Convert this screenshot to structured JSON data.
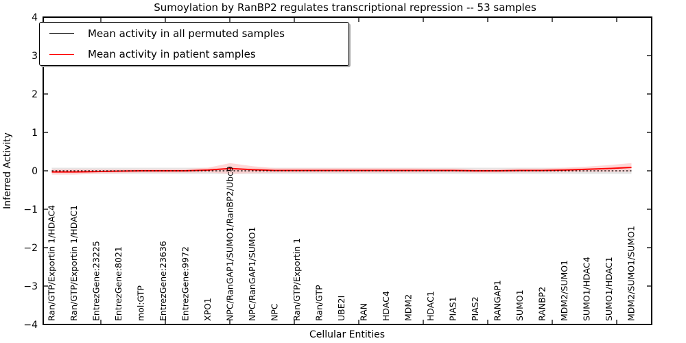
{
  "chart_data": {
    "type": "line",
    "title": "Sumoylation by RanBP2 regulates transcriptional repression -- 53 samples",
    "xlabel": "Cellular Entities",
    "ylabel": "Inferred Activity",
    "ylim": [
      -4,
      4
    ],
    "yticks": [
      4,
      3,
      2,
      1,
      0,
      -1,
      -2,
      -3,
      -4
    ],
    "grid": false,
    "legend_position": "upper left",
    "categories": [
      "Ran/GTP/Exportin 1/HDAC4",
      "Ran/GTP/Exportin 1/HDAC1",
      "EntrezGene:23225",
      "EntrezGene:8021",
      "mol:GTP",
      "EntrezGene:23636",
      "EntrezGene:9972",
      "XPO1",
      "NPC/RanGAP1/SUMO1/RanBP2/Ubc9",
      "NPC/RanGAP1/SUMO1",
      "NPC",
      "Ran/GTP/Exportin 1",
      "Ran/GTP",
      "UBE2I",
      "RAN",
      "HDAC4",
      "MDM2",
      "HDAC1",
      "PIAS1",
      "PIAS2",
      "RANGAP1",
      "SUMO1",
      "RANBP2",
      "MDM2/SUMO1",
      "SUMO1/HDAC4",
      "SUMO1/HDAC1",
      "MDM2/SUMO1/SUMO1"
    ],
    "series": [
      {
        "name": "Mean activity in all permuted samples",
        "color": "#000000",
        "line_style": "dashed",
        "values": [
          0,
          0,
          0,
          0,
          0,
          0,
          0,
          0,
          0,
          0,
          0,
          0,
          0,
          0,
          0,
          0,
          0,
          0,
          0,
          0,
          0,
          0,
          0,
          0,
          0,
          0,
          0
        ],
        "band_halfwidth": [
          0.08,
          0.08,
          0.08,
          0.08,
          0.08,
          0.08,
          0.08,
          0.08,
          0.08,
          0.08,
          0.08,
          0.08,
          0.08,
          0.08,
          0.08,
          0.08,
          0.08,
          0.08,
          0.08,
          0.08,
          0.08,
          0.08,
          0.08,
          0.08,
          0.08,
          0.08,
          0.08
        ],
        "band_color": "#dcdcdc"
      },
      {
        "name": "Mean activity in patient samples",
        "color": "#ff0000",
        "line_style": "solid",
        "values": [
          -0.03,
          -0.03,
          -0.02,
          -0.01,
          0,
          0,
          0,
          0.02,
          0.06,
          0.03,
          0.01,
          0.01,
          0.01,
          0.01,
          0.01,
          0.01,
          0.01,
          0.01,
          0.01,
          0,
          0,
          0.01,
          0.01,
          0.02,
          0.04,
          0.06,
          0.09
        ],
        "band_halfwidth": [
          0.07,
          0.07,
          0.06,
          0.05,
          0.05,
          0.05,
          0.05,
          0.06,
          0.14,
          0.09,
          0.06,
          0.06,
          0.06,
          0.06,
          0.06,
          0.06,
          0.06,
          0.05,
          0.05,
          0.05,
          0.05,
          0.05,
          0.05,
          0.06,
          0.07,
          0.09,
          0.11
        ],
        "band_color": "#ffc9c9"
      }
    ]
  }
}
